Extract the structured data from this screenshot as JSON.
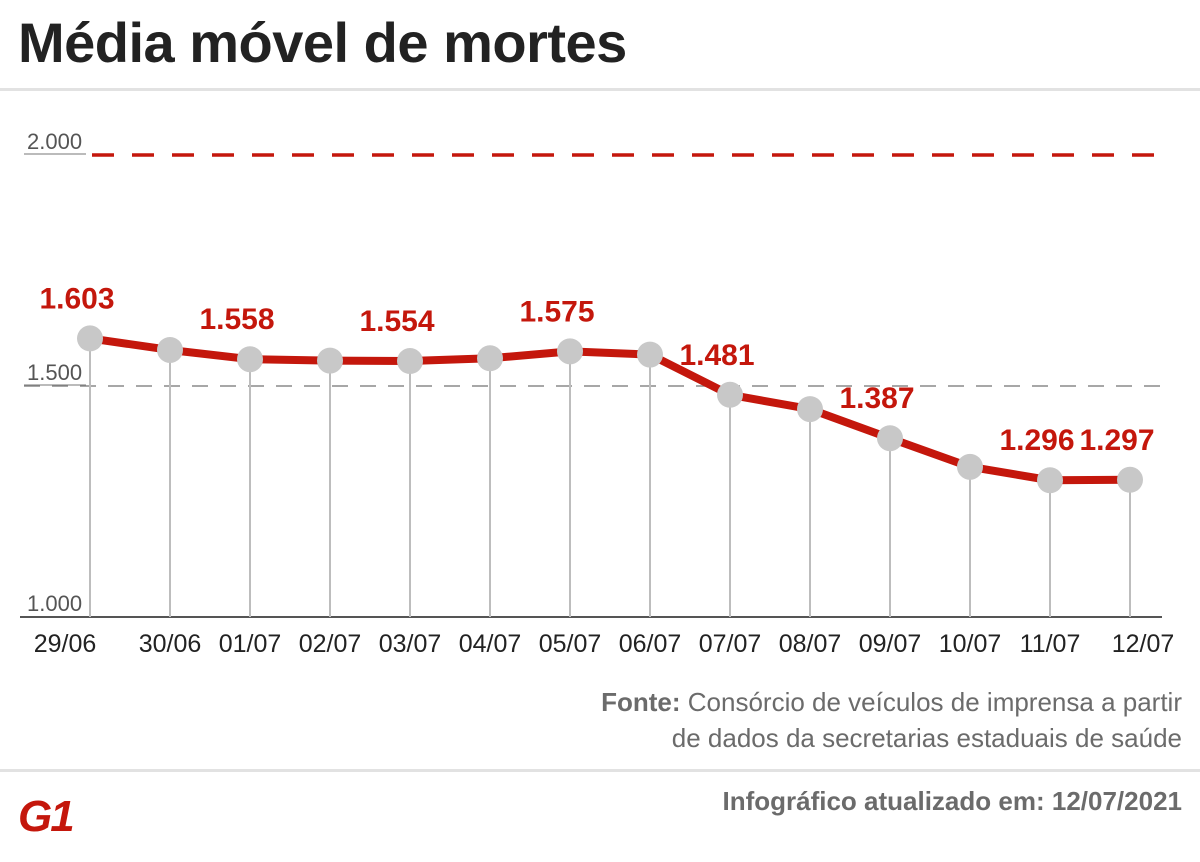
{
  "header": {
    "title": "Média móvel de mortes"
  },
  "chart_data": {
    "type": "line",
    "x": [
      "29/06",
      "30/06",
      "01/07",
      "02/07",
      "03/07",
      "04/07",
      "05/07",
      "06/07",
      "07/07",
      "08/07",
      "09/07",
      "10/07",
      "11/07",
      "12/07"
    ],
    "series": [
      {
        "values": [
          1603,
          1578,
          1558,
          1555,
          1554,
          1560,
          1575,
          1568,
          1481,
          1450,
          1387,
          1325,
          1296,
          1297
        ]
      }
    ],
    "data_labels": [
      {
        "index": 0,
        "text": "1.603"
      },
      {
        "index": 2,
        "text": "1.558"
      },
      {
        "index": 4,
        "text": "1.554"
      },
      {
        "index": 6,
        "text": "1.575"
      },
      {
        "index": 8,
        "text": "1.481"
      },
      {
        "index": 10,
        "text": "1.387"
      },
      {
        "index": 12,
        "text": "1.296"
      },
      {
        "index": 13,
        "text": "1.297"
      }
    ],
    "y_ticks": [
      {
        "value": 1000,
        "label": "1.000"
      },
      {
        "value": 1500,
        "label": "1.500"
      },
      {
        "value": 2000,
        "label": "2.000"
      }
    ],
    "ylim": [
      1000,
      2000
    ],
    "reference_line": {
      "value": 2000,
      "style": "dashed",
      "color": "#c4170c"
    },
    "line_color": "#c4170c",
    "marker_color": "#c8c8c8",
    "label_color": "#c4170c"
  },
  "source": {
    "prefix": "Fonte:",
    "line1": "Consórcio de veículos de imprensa a partir",
    "line2": "de dados da secretarias estaduais de saúde"
  },
  "footer": {
    "logo_text": "G1",
    "updated_label": "Infográfico atualizado em:",
    "updated_date": "12/07/2021"
  }
}
